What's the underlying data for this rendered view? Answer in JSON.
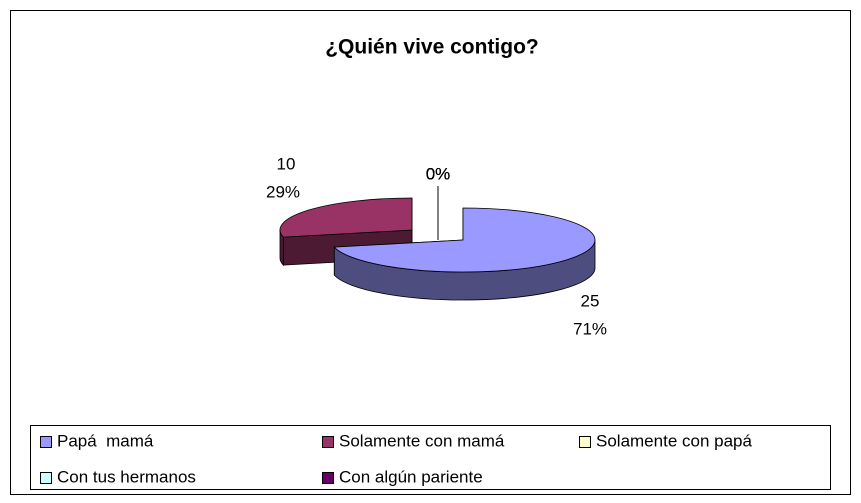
{
  "chart_data": {
    "type": "pie3d",
    "title": "¿Quién vive contigo?",
    "categories": [
      "Papá  mamá",
      "Solamente con mamá",
      "Solamente con papá",
      "Con tus hermanos",
      "Con algún pariente"
    ],
    "values": [
      25,
      10,
      0,
      0,
      0
    ],
    "percentages": [
      71,
      29,
      0,
      0,
      0
    ],
    "percentage_labels": [
      "71%",
      "29%",
      "0%",
      "0%",
      "0%"
    ],
    "colors": [
      "#9999ff",
      "#993366",
      "#ffffcc",
      "#ccffff",
      "#660066"
    ],
    "legend": "bottom"
  }
}
